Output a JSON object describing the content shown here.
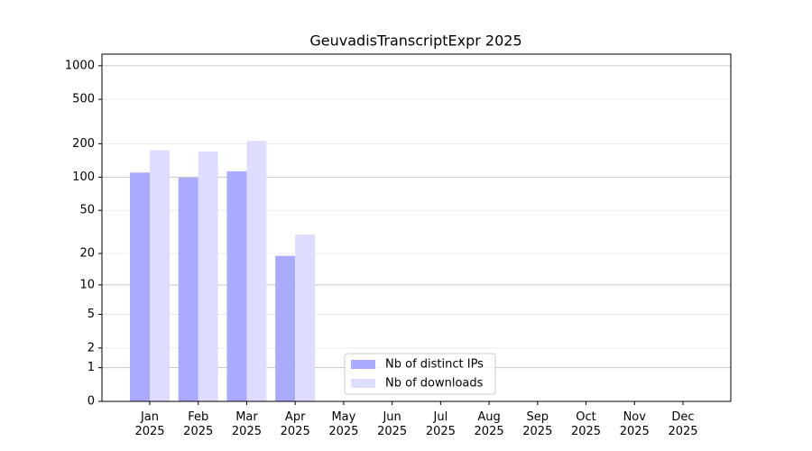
{
  "chart_data": {
    "type": "bar",
    "title": "GeuvadisTranscriptExpr 2025",
    "categories": [
      "Jan 2025",
      "Feb 2025",
      "Mar 2025",
      "Apr 2025",
      "May 2025",
      "Jun 2025",
      "Jul 2025",
      "Aug 2025",
      "Sep 2025",
      "Oct 2025",
      "Nov 2025",
      "Dec 2025"
    ],
    "series": [
      {
        "name": "Nb of distinct IPs",
        "color": "#aaaaff",
        "values": [
          110,
          99,
          113,
          19,
          null,
          null,
          null,
          null,
          null,
          null,
          null,
          null
        ]
      },
      {
        "name": "Nb of downloads",
        "color": "#ddddff",
        "values": [
          175,
          170,
          212,
          30,
          null,
          null,
          null,
          null,
          null,
          null,
          null,
          null
        ]
      }
    ],
    "yscale": "log1p",
    "ylim": [
      0,
      1270
    ],
    "yticks": [
      0,
      1,
      2,
      5,
      10,
      20,
      50,
      100,
      200,
      500,
      1000
    ],
    "grid": true,
    "legend": "lower center"
  }
}
